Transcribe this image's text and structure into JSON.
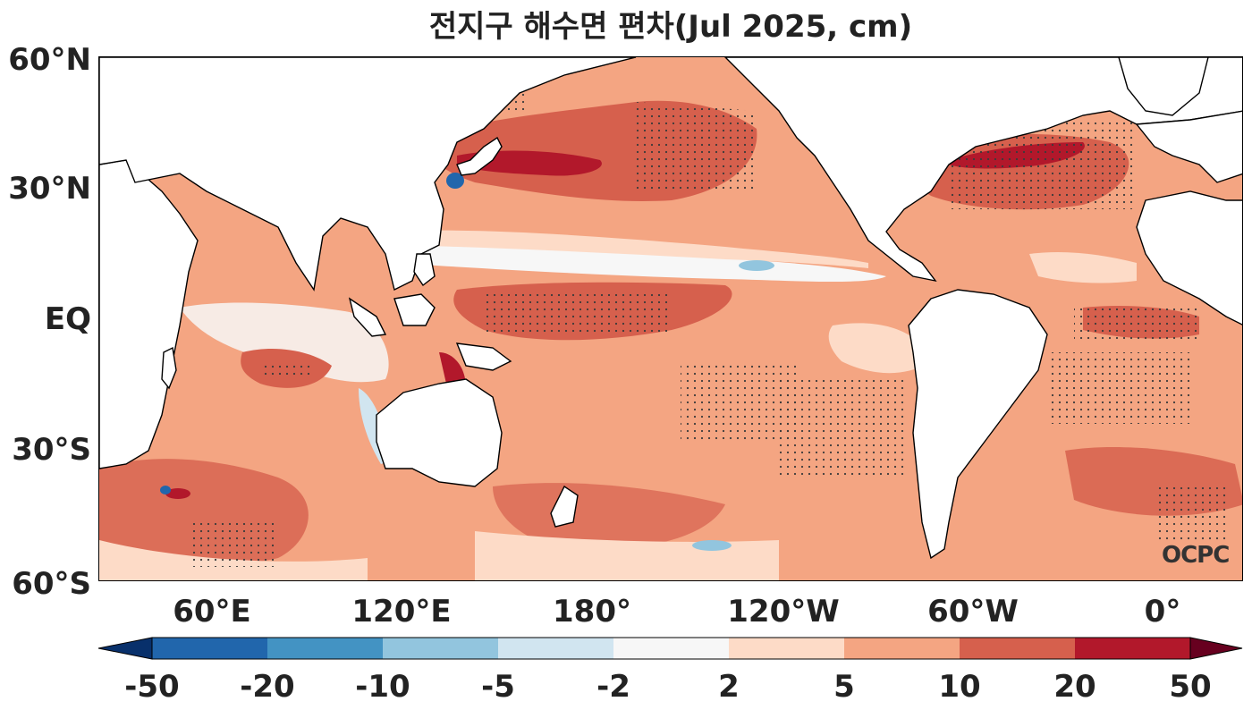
{
  "title": "전지구 해수면 편차(Jul 2025, cm)",
  "logo": "OCPC",
  "lat_labels": [
    "60°N",
    "30°N",
    "EQ",
    "30°S",
    "60°S"
  ],
  "lon_labels": [
    "60°E",
    "120°E",
    "180°",
    "120°W",
    "60°W",
    "0°"
  ],
  "colorbar": {
    "ticks": [
      "-50",
      "-20",
      "-10",
      "-5",
      "-2",
      "2",
      "5",
      "10",
      "20",
      "50"
    ],
    "colors": [
      "#08306b",
      "#2166ac",
      "#4393c3",
      "#92c5de",
      "#d1e5f0",
      "#f7f7f7",
      "#fddbc7",
      "#f4a582",
      "#d6604d",
      "#b2182b",
      "#67001f"
    ]
  },
  "map": {
    "ocean_base_color": "#f4a582",
    "land_color": "#ffffff",
    "coast_color": "#000000"
  }
}
